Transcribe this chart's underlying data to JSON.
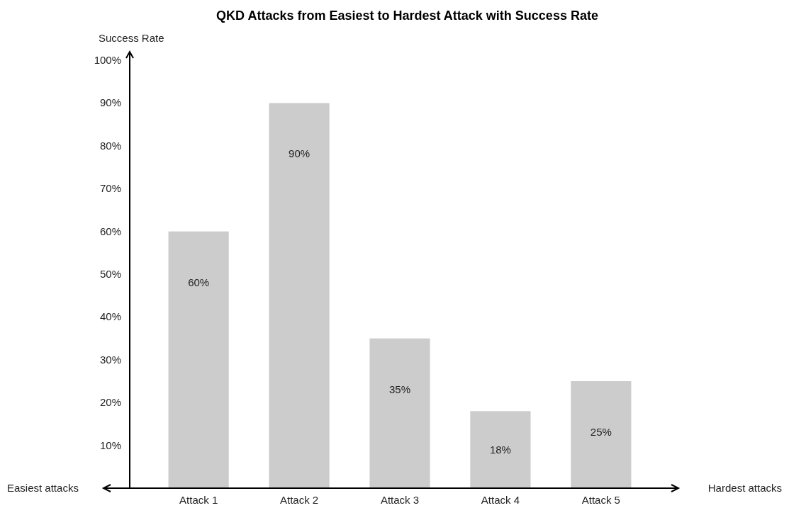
{
  "chart_data": {
    "type": "bar",
    "title": "QKD Attacks from Easiest to Hardest Attack with Success Rate",
    "ylabel": "Success Rate",
    "categories": [
      "Attack 1",
      "Attack 2",
      "Attack 3",
      "Attack 4",
      "Attack 5"
    ],
    "values": [
      60,
      90,
      35,
      18,
      25
    ],
    "color": "#cccccc",
    "data_labels": true,
    "value_labels": [
      "60%",
      "90%",
      "35%",
      "18%",
      "25%"
    ],
    "ylim": [
      0,
      102
    ],
    "yticks": [
      {
        "value": 10,
        "label": "10%"
      },
      {
        "value": 20,
        "label": "20%"
      },
      {
        "value": 30,
        "label": "30%"
      },
      {
        "value": 40,
        "label": "40%"
      },
      {
        "value": 50,
        "label": "50%"
      },
      {
        "value": 60,
        "label": "60%"
      },
      {
        "value": 70,
        "label": "70%"
      },
      {
        "value": 80,
        "label": "80%"
      },
      {
        "value": 90,
        "label": "90%"
      },
      {
        "value": 100,
        "label": "100%"
      }
    ],
    "annotations": [
      "Easiest attacks",
      "Hardest attacks"
    ],
    "grid": false
  }
}
